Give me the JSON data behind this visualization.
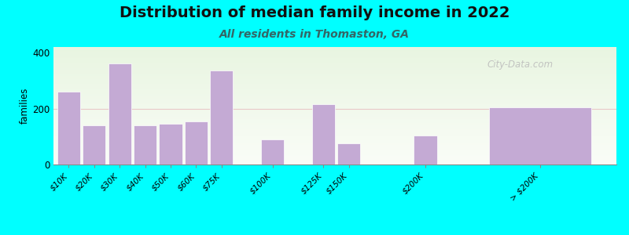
{
  "title": "Distribution of median family income in 2022",
  "subtitle": "All residents in Thomaston, GA",
  "ylabel": "families",
  "background_outer": "#00FFFF",
  "bar_color": "#c4aad4",
  "bar_edge_color": "#ffffff",
  "categories": [
    "$10K",
    "$20K",
    "$30K",
    "$40K",
    "$50K",
    "$60K",
    "$75K",
    "$100K",
    "$125K",
    "$150K",
    "$200K",
    "> $200K"
  ],
  "values": [
    260,
    140,
    360,
    140,
    145,
    155,
    335,
    90,
    215,
    75,
    105,
    205
  ],
  "ylim": [
    0,
    420
  ],
  "yticks": [
    0,
    200,
    400
  ],
  "title_fontsize": 14,
  "subtitle_fontsize": 10,
  "watermark": "City-Data.com"
}
